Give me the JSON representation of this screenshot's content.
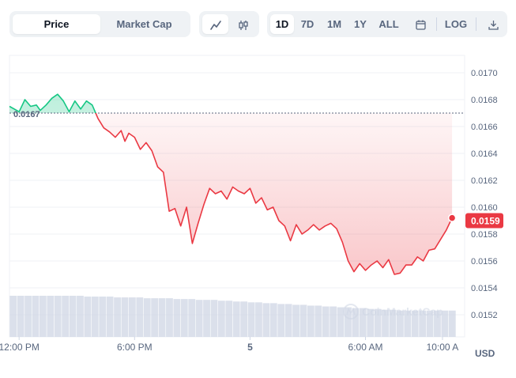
{
  "toggle_metric": {
    "price_label": "Price",
    "market_cap_label": "Market Cap",
    "active": "price"
  },
  "chart_style": {
    "line_icon": "line-chart-icon",
    "candle_icon": "candlestick-icon",
    "active": "line"
  },
  "range_buttons": [
    "1D",
    "7D",
    "1M",
    "1Y",
    "ALL"
  ],
  "active_range": "1D",
  "tools": {
    "calendar_icon": "calendar-icon",
    "log_label": "LOG",
    "download_icon": "download-icon"
  },
  "currency_label": "USD",
  "watermark": "CoinMarketCap",
  "colors": {
    "up": "#16c784",
    "down": "#ea3943",
    "volume": "#cfd6e4"
  },
  "chart_data": {
    "type": "area",
    "reference_price": 0.0167,
    "reference_label": "0.0167",
    "current_price": 0.0159,
    "current_label": "0.0159",
    "y_ticks": [
      "0.0170",
      "0.0168",
      "0.0166",
      "0.0164",
      "0.0162",
      "0.0160",
      "0.0158",
      "0.0156",
      "0.0154",
      "0.0152"
    ],
    "y_tick_values": [
      0.017,
      0.0168,
      0.0166,
      0.0164,
      0.0162,
      0.016,
      0.0158,
      0.0156,
      0.0154,
      0.0152
    ],
    "ylim": [
      0.01515,
      0.01715
    ],
    "x_ticks": [
      "12:00 PM",
      "6:00 PM",
      "5",
      "6:00 AM",
      "10:00 A"
    ],
    "x_tick_hours": [
      0.5,
      6.5,
      12.5,
      18.5,
      22.5
    ],
    "xlim": [
      0,
      23.2
    ],
    "series": [
      {
        "x": [
          0.0,
          0.5,
          0.8,
          1.1,
          1.4,
          1.6,
          1.9,
          2.2,
          2.5,
          2.8,
          3.1,
          3.4,
          3.7,
          4.0,
          4.3,
          4.6,
          4.9,
          5.2,
          5.5,
          5.8,
          6.0,
          6.2,
          6.5,
          6.8,
          7.1,
          7.4,
          7.7,
          8.0,
          8.3,
          8.6,
          8.9,
          9.2,
          9.5,
          9.8,
          10.1,
          10.4,
          10.7,
          11.0,
          11.3,
          11.6,
          11.9,
          12.2,
          12.5,
          12.8,
          13.1,
          13.4,
          13.7,
          14.0,
          14.3,
          14.6,
          14.9,
          15.2,
          15.5,
          15.8,
          16.1,
          16.4,
          16.7,
          17.0,
          17.3,
          17.6,
          17.9,
          18.2,
          18.5,
          18.8,
          19.1,
          19.4,
          19.7,
          20.0,
          20.3,
          20.6,
          20.9,
          21.2,
          21.5,
          21.8,
          22.1,
          22.4,
          22.7,
          23.0
        ],
        "y": [
          0.01675,
          0.01671,
          0.0168,
          0.01675,
          0.01676,
          0.01672,
          0.01676,
          0.01681,
          0.01684,
          0.01679,
          0.01671,
          0.01679,
          0.01673,
          0.01679,
          0.01676,
          0.01666,
          0.01659,
          0.01656,
          0.01652,
          0.01657,
          0.01649,
          0.01655,
          0.01652,
          0.01643,
          0.01648,
          0.01642,
          0.0163,
          0.01626,
          0.01597,
          0.01599,
          0.01586,
          0.016,
          0.01573,
          0.01588,
          0.01602,
          0.01614,
          0.0161,
          0.01612,
          0.01606,
          0.01615,
          0.01612,
          0.0161,
          0.01614,
          0.01603,
          0.01607,
          0.01598,
          0.016,
          0.0159,
          0.01586,
          0.01575,
          0.01587,
          0.0158,
          0.01583,
          0.01587,
          0.01583,
          0.01586,
          0.01588,
          0.01584,
          0.01574,
          0.0156,
          0.01552,
          0.01558,
          0.01553,
          0.01557,
          0.0156,
          0.01555,
          0.01561,
          0.0155,
          0.01551,
          0.01557,
          0.01557,
          0.01563,
          0.0156,
          0.01568,
          0.01569,
          0.01576,
          0.01583,
          0.01592
        ]
      }
    ],
    "volume": [
      5,
      5,
      5,
      5,
      5,
      5,
      5,
      5,
      5,
      5,
      4.9,
      4.9,
      4.9,
      4.9,
      4.8,
      4.8,
      4.8,
      4.8,
      4.7,
      4.7,
      4.7,
      4.7,
      4.6,
      4.6,
      4.6,
      4.5,
      4.5,
      4.5,
      4.4,
      4.4,
      4.3,
      4.3,
      4.2,
      4.2,
      4.1,
      4.1,
      4.0,
      4.0,
      3.9,
      3.9,
      3.8,
      3.8,
      3.7,
      3.7,
      3.6,
      3.6,
      3.5,
      3.5,
      3.4,
      3.4,
      3.3,
      3.3,
      3.2,
      3.2,
      3.2,
      3.2,
      3.2,
      3.2,
      3.2,
      3.2
    ]
  }
}
